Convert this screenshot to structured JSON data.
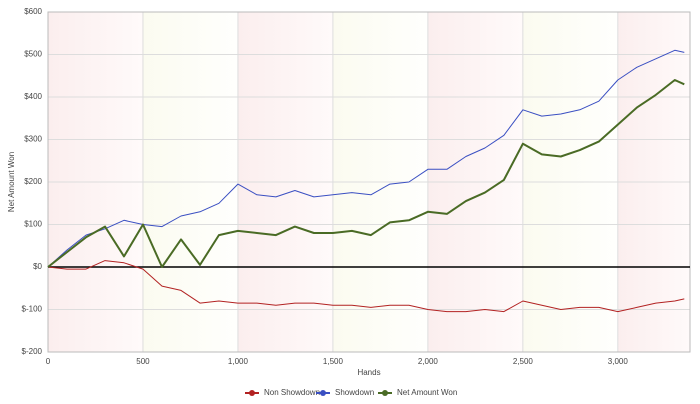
{
  "chart_data": {
    "type": "line",
    "x_label": "Hands",
    "y_label": "Net Amount Won",
    "x": [
      0,
      100,
      200,
      300,
      400,
      500,
      600,
      700,
      800,
      900,
      1000,
      1100,
      1200,
      1300,
      1400,
      1500,
      1600,
      1700,
      1800,
      1900,
      2000,
      2100,
      2200,
      2300,
      2400,
      2500,
      2600,
      2700,
      2800,
      2900,
      3000,
      3100,
      3200,
      3300,
      3350
    ],
    "series": [
      {
        "name": "Non Showdown",
        "color": "#b22222",
        "values": [
          0,
          -5,
          -5,
          15,
          10,
          -5,
          -45,
          -55,
          -85,
          -80,
          -85,
          -85,
          -90,
          -85,
          -85,
          -90,
          -90,
          -95,
          -90,
          -90,
          -100,
          -105,
          -105,
          -100,
          -105,
          -80,
          -90,
          -100,
          -95,
          -95,
          -105,
          -95,
          -85,
          -80,
          -75
        ]
      },
      {
        "name": "Showdown",
        "color": "#3a4fc2",
        "values": [
          0,
          40,
          75,
          90,
          110,
          100,
          95,
          120,
          130,
          150,
          195,
          170,
          165,
          180,
          165,
          170,
          175,
          170,
          195,
          200,
          230,
          230,
          260,
          280,
          310,
          370,
          355,
          360,
          370,
          390,
          440,
          470,
          490,
          510,
          505
        ]
      },
      {
        "name": "Net Amount Won",
        "color": "#4a6b25",
        "values": [
          0,
          35,
          70,
          95,
          25,
          100,
          0,
          65,
          5,
          75,
          85,
          80,
          75,
          95,
          80,
          80,
          85,
          75,
          105,
          110,
          130,
          125,
          155,
          175,
          205,
          290,
          265,
          260,
          275,
          295,
          335,
          375,
          405,
          440,
          430
        ]
      }
    ],
    "xlim": [
      0,
      3380
    ],
    "ylim": [
      -200,
      600
    ],
    "xticks": [
      0,
      500,
      {
        "value": 1000,
        "label": "1,000"
      },
      {
        "value": 1500,
        "label": "1,500"
      },
      {
        "value": 2000,
        "label": "2,000"
      },
      {
        "value": 2500,
        "label": "2,500"
      },
      {
        "value": 3000,
        "label": "3,000"
      }
    ],
    "yticks": [
      {
        "value": -200,
        "label": "$-200"
      },
      {
        "value": -100,
        "label": "$-100"
      },
      {
        "value": 0,
        "label": "$0"
      },
      {
        "value": 100,
        "label": "$100"
      },
      {
        "value": 200,
        "label": "$200"
      },
      {
        "value": 300,
        "label": "$300"
      },
      {
        "value": 400,
        "label": "$400"
      },
      {
        "value": 500,
        "label": "$500"
      },
      {
        "value": 600,
        "label": "$600"
      }
    ],
    "grid": true
  }
}
